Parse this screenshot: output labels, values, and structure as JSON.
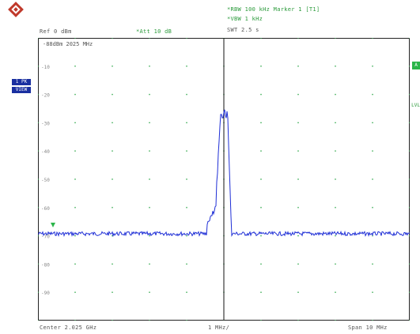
{
  "header": {
    "row1_left": "",
    "row1_right": "*RBW 100 kHz  Marker 1 [T1]",
    "row2_left": "Ref  0 dBm",
    "row2_mid": "*Att  10 dB",
    "row2_right": "*VBW 1 kHz",
    "row3_right": "SWT 2.5 s"
  },
  "marker": {
    "text": "-88dBm  2025 MHz"
  },
  "badges": {
    "top": "1 PK",
    "bottom": "VIEW"
  },
  "right_tags": {
    "a_label": "A",
    "lvl_label": "LVL"
  },
  "footer": {
    "left": "Center 2.025 GHz",
    "mid": "1 MHz/",
    "right": "Span 10 MHz"
  },
  "y_labels": [
    "-10",
    "-20",
    "-30",
    "-40",
    "-50",
    "-60",
    "-70",
    "-80",
    "-90"
  ],
  "colors": {
    "grid": "#2ea84a",
    "frame": "#222222",
    "trace": "#1f2fd6",
    "marker_line": "#111111",
    "logo": "#c0392b"
  },
  "icons": {
    "logo": "rohde-schwarz-logo-icon",
    "marker": "trigger-marker-icon"
  }
}
